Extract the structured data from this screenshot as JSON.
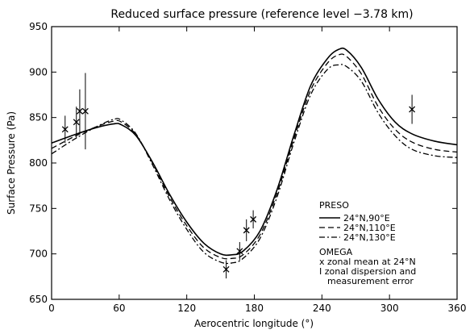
{
  "chart_data": {
    "type": "line",
    "title": "Reduced surface pressure (reference level −3.78 km)",
    "xlabel": "Aerocentric longitude (°)",
    "ylabel": "Surface Pressure (Pa)",
    "xlim": [
      0,
      360
    ],
    "ylim": [
      650,
      950
    ],
    "xticks": [
      0,
      60,
      120,
      180,
      240,
      300,
      360
    ],
    "yticks": [
      650,
      700,
      750,
      800,
      850,
      900,
      950
    ],
    "grid": false,
    "legend_position": "bottom-right",
    "legend_group_title": "PRESO",
    "series": [
      {
        "name": "24°N,90°E",
        "style": "solid",
        "color": "#000000",
        "points": [
          [
            0,
            822
          ],
          [
            20,
            831
          ],
          [
            40,
            839
          ],
          [
            55,
            843
          ],
          [
            62,
            842
          ],
          [
            75,
            830
          ],
          [
            90,
            800
          ],
          [
            105,
            765
          ],
          [
            120,
            735
          ],
          [
            135,
            712
          ],
          [
            150,
            700
          ],
          [
            160,
            699
          ],
          [
            170,
            703
          ],
          [
            185,
            725
          ],
          [
            200,
            770
          ],
          [
            215,
            830
          ],
          [
            230,
            885
          ],
          [
            245,
            915
          ],
          [
            255,
            925
          ],
          [
            262,
            924
          ],
          [
            275,
            905
          ],
          [
            290,
            870
          ],
          [
            305,
            845
          ],
          [
            320,
            832
          ],
          [
            340,
            824
          ],
          [
            360,
            820
          ]
        ]
      },
      {
        "name": "24°N,110°E",
        "style": "dashed",
        "color": "#000000",
        "points": [
          [
            0,
            816
          ],
          [
            20,
            829
          ],
          [
            40,
            840
          ],
          [
            55,
            846
          ],
          [
            62,
            845
          ],
          [
            75,
            831
          ],
          [
            90,
            799
          ],
          [
            105,
            762
          ],
          [
            120,
            731
          ],
          [
            135,
            707
          ],
          [
            150,
            696
          ],
          [
            160,
            695
          ],
          [
            170,
            699
          ],
          [
            185,
            721
          ],
          [
            200,
            766
          ],
          [
            215,
            826
          ],
          [
            230,
            880
          ],
          [
            245,
            910
          ],
          [
            255,
            919
          ],
          [
            262,
            917
          ],
          [
            275,
            898
          ],
          [
            290,
            862
          ],
          [
            305,
            837
          ],
          [
            320,
            823
          ],
          [
            340,
            815
          ],
          [
            360,
            812
          ]
        ]
      },
      {
        "name": "24°N,130°E",
        "style": "dash-dot",
        "color": "#000000",
        "points": [
          [
            0,
            810
          ],
          [
            20,
            826
          ],
          [
            40,
            840
          ],
          [
            55,
            848
          ],
          [
            62,
            847
          ],
          [
            75,
            832
          ],
          [
            90,
            797
          ],
          [
            105,
            759
          ],
          [
            120,
            727
          ],
          [
            135,
            702
          ],
          [
            150,
            691
          ],
          [
            160,
            690
          ],
          [
            170,
            695
          ],
          [
            185,
            717
          ],
          [
            200,
            762
          ],
          [
            215,
            822
          ],
          [
            230,
            875
          ],
          [
            245,
            903
          ],
          [
            255,
            908
          ],
          [
            262,
            906
          ],
          [
            275,
            890
          ],
          [
            290,
            855
          ],
          [
            305,
            830
          ],
          [
            320,
            815
          ],
          [
            340,
            808
          ],
          [
            360,
            806
          ]
        ]
      }
    ],
    "omega": {
      "legend_title": "OMEGA",
      "mean_label": "x  zonal mean at 24°N",
      "error_label_1": "I  zonal dispersion and",
      "error_label_2": "measurement error",
      "points": [
        {
          "x": 12,
          "y": 837,
          "err_low": 822,
          "err_high": 852
        },
        {
          "x": 22,
          "y": 845,
          "err_low": 827,
          "err_high": 862
        },
        {
          "x": 25,
          "y": 857,
          "err_low": 833,
          "err_high": 881
        },
        {
          "x": 30,
          "y": 857,
          "err_low": 815,
          "err_high": 899
        },
        {
          "x": 155,
          "y": 683,
          "err_low": 673,
          "err_high": 693
        },
        {
          "x": 167,
          "y": 703,
          "err_low": 693,
          "err_high": 713
        },
        {
          "x": 173,
          "y": 726,
          "err_low": 714,
          "err_high": 738
        },
        {
          "x": 179,
          "y": 738,
          "err_low": 728,
          "err_high": 748
        },
        {
          "x": 320,
          "y": 859,
          "err_low": 843,
          "err_high": 875
        }
      ]
    }
  }
}
